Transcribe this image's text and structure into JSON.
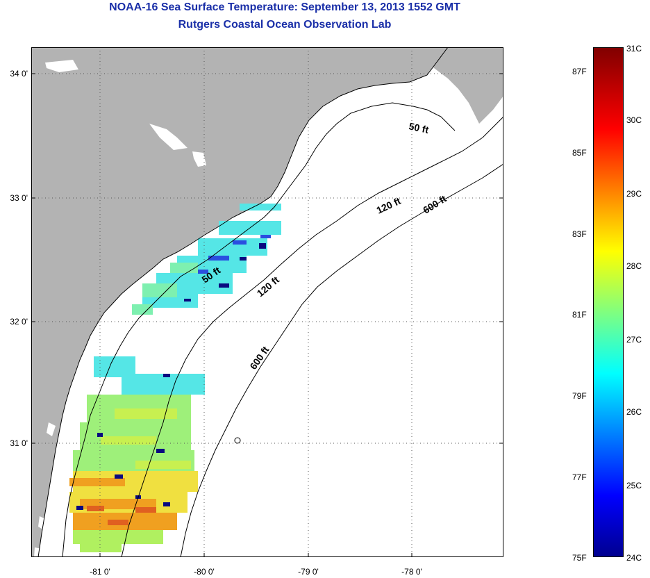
{
  "title": "NOAA-16 Sea Surface Temperature:  September 13, 2013 1552 GMT",
  "subtitle": "Rutgers Coastal Ocean Observation Lab",
  "lat_labels": [
    "34 0'",
    "33 0'",
    "32 0'",
    "31 0'"
  ],
  "lon_labels": [
    "-81 0'",
    "-80 0'",
    "-79 0'",
    "-78 0'"
  ],
  "contour_labels": [
    "50 ft",
    "120 ft",
    "600 ft",
    "50 ft",
    "120 ft",
    "600 ft"
  ],
  "colorbar": {
    "celsius_labels": [
      "31C",
      "30C",
      "29C",
      "28C",
      "27C",
      "26C",
      "25C",
      "24C"
    ],
    "fahrenheit_labels": [
      "87F",
      "85F",
      "83F",
      "81F",
      "79F",
      "77F",
      "75F"
    ]
  },
  "colors": {
    "title": "#1a2fa8",
    "land": "#b3b3b3",
    "ocean": "#ffffff",
    "gridline": "#555555"
  },
  "chart_data": {
    "type": "heatmap",
    "title": "NOAA-16 Sea Surface Temperature:  September 13, 2013 1552 GMT",
    "subtitle": "Rutgers Coastal Ocean Observation Lab",
    "x_range": [
      -81.7,
      -77.2
    ],
    "y_range": [
      30.1,
      34.2
    ],
    "colorbar_range_celsius": [
      24,
      31
    ],
    "colorbar_range_fahrenheit": [
      75,
      88
    ],
    "grid": true,
    "legend": "right"
  }
}
